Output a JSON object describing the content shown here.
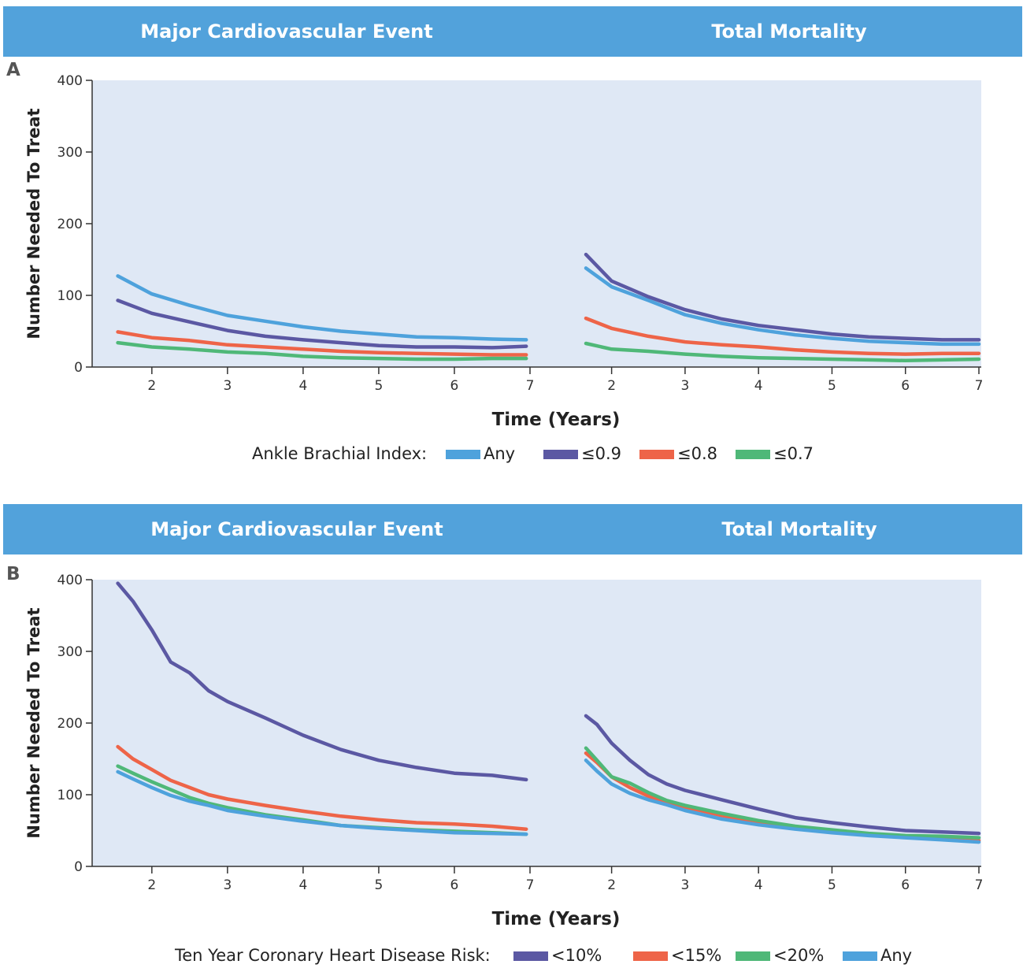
{
  "panels": [
    {
      "letter": "A",
      "col_titles": [
        "Major Cardiovascular Event",
        "Total Mortality"
      ],
      "legend_title": "Ankle Brachial Index:",
      "legend": [
        {
          "label": "Any",
          "color": "#4ea2dc"
        },
        {
          "label": "≤0.9",
          "color": "#5b58a3"
        },
        {
          "label": "≤0.8",
          "color": "#ee6448"
        },
        {
          "label": "≤0.7",
          "color": "#4fb878"
        }
      ]
    },
    {
      "letter": "B",
      "col_titles": [
        "Major Cardiovascular Event",
        "Total Mortality"
      ],
      "legend_title": "Ten Year Coronary Heart Disease Risk:",
      "legend": [
        {
          "label": "<10%",
          "color": "#5b58a3"
        },
        {
          "label": "<15%",
          "color": "#ee6448"
        },
        {
          "label": "<20%",
          "color": "#4fb878"
        },
        {
          "label": "Any",
          "color": "#4ea2dc"
        }
      ]
    }
  ],
  "chart_data": [
    {
      "type": "line",
      "panel": "A",
      "title": "Major Cardiovascular Event",
      "xlabel": "Time (Years)",
      "ylabel": "Number Needed To Treat",
      "xlim": [
        1.2,
        7
      ],
      "ylim": [
        0,
        400
      ],
      "xticks": [
        2,
        3,
        4,
        5,
        6,
        7
      ],
      "yticks": [
        0,
        100,
        200,
        300,
        400
      ],
      "x": [
        1.55,
        2,
        2.5,
        3,
        3.5,
        4,
        4.5,
        5,
        5.5,
        6,
        6.5,
        6.95
      ],
      "series": [
        {
          "name": "Any",
          "color": "#4ea2dc",
          "values": [
            127,
            102,
            86,
            72,
            64,
            56,
            50,
            46,
            42,
            41,
            39,
            38
          ]
        },
        {
          "name": "≤0.9",
          "color": "#5b58a3",
          "values": [
            93,
            75,
            63,
            51,
            43,
            38,
            34,
            30,
            28,
            28,
            27,
            29
          ]
        },
        {
          "name": "≤0.8",
          "color": "#ee6448",
          "values": [
            49,
            41,
            37,
            31,
            28,
            25,
            22,
            20,
            19,
            18,
            17,
            17
          ]
        },
        {
          "name": "≤0.7",
          "color": "#4fb878",
          "values": [
            34,
            28,
            25,
            21,
            19,
            15,
            13,
            12,
            11,
            11,
            12,
            12
          ]
        }
      ]
    },
    {
      "type": "line",
      "panel": "A",
      "title": "Total Mortality",
      "xlabel": "Time (Years)",
      "ylabel": "Number Needed To Treat",
      "xlim": [
        1.2,
        7
      ],
      "ylim": [
        0,
        400
      ],
      "xticks": [
        2,
        3,
        4,
        5,
        6,
        7
      ],
      "yticks": [
        0,
        100,
        200,
        300,
        400
      ],
      "x": [
        1.65,
        2,
        2.5,
        3,
        3.5,
        4,
        4.5,
        5,
        5.5,
        6,
        6.5,
        7
      ],
      "series": [
        {
          "name": "Any",
          "color": "#4ea2dc",
          "values": [
            138,
            112,
            93,
            73,
            61,
            52,
            45,
            40,
            36,
            34,
            32,
            32
          ]
        },
        {
          "name": "≤0.9",
          "color": "#5b58a3",
          "values": [
            157,
            120,
            98,
            80,
            67,
            58,
            52,
            46,
            42,
            40,
            38,
            38
          ]
        },
        {
          "name": "≤0.8",
          "color": "#ee6448",
          "values": [
            68,
            54,
            43,
            35,
            31,
            28,
            24,
            21,
            19,
            18,
            19,
            19
          ]
        },
        {
          "name": "≤0.7",
          "color": "#4fb878",
          "values": [
            33,
            25,
            22,
            18,
            15,
            13,
            12,
            11,
            10,
            9,
            10,
            11
          ]
        }
      ]
    },
    {
      "type": "line",
      "panel": "B",
      "title": "Major Cardiovascular Event",
      "xlabel": "Time (Years)",
      "ylabel": "Number Needed To Treat",
      "xlim": [
        1.2,
        7
      ],
      "ylim": [
        0,
        400
      ],
      "xticks": [
        2,
        3,
        4,
        5,
        6,
        7
      ],
      "yticks": [
        0,
        100,
        200,
        300,
        400
      ],
      "x": [
        1.55,
        1.75,
        2,
        2.25,
        2.5,
        2.75,
        3,
        3.5,
        4,
        4.5,
        5,
        5.5,
        6,
        6.5,
        6.95
      ],
      "series": [
        {
          "name": "<10%",
          "color": "#5b58a3",
          "values": [
            395,
            370,
            330,
            285,
            270,
            245,
            230,
            207,
            183,
            163,
            148,
            138,
            130,
            127,
            121
          ]
        },
        {
          "name": "<15%",
          "color": "#ee6448",
          "values": [
            167,
            150,
            135,
            120,
            110,
            100,
            94,
            85,
            77,
            70,
            65,
            61,
            59,
            56,
            52
          ]
        },
        {
          "name": "<20%",
          "color": "#4fb878",
          "values": [
            140,
            130,
            118,
            107,
            96,
            88,
            82,
            72,
            65,
            57,
            54,
            51,
            49,
            47,
            45
          ]
        },
        {
          "name": "Any",
          "color": "#4ea2dc",
          "values": [
            132,
            122,
            110,
            99,
            91,
            85,
            78,
            70,
            63,
            57,
            53,
            50,
            47,
            46,
            45
          ]
        }
      ]
    },
    {
      "type": "line",
      "panel": "B",
      "title": "Total Mortality",
      "xlabel": "Time (Years)",
      "ylabel": "Number Needed To Treat",
      "xlim": [
        1.2,
        7
      ],
      "ylim": [
        0,
        400
      ],
      "xticks": [
        2,
        3,
        4,
        5,
        6,
        7
      ],
      "yticks": [
        0,
        100,
        200,
        300,
        400
      ],
      "x": [
        1.65,
        1.8,
        2,
        2.25,
        2.5,
        2.75,
        3,
        3.5,
        4,
        4.5,
        5,
        5.5,
        6,
        6.5,
        7
      ],
      "series": [
        {
          "name": "<10%",
          "color": "#5b58a3",
          "values": [
            210,
            198,
            172,
            148,
            128,
            115,
            106,
            93,
            80,
            68,
            61,
            55,
            50,
            48,
            46
          ]
        },
        {
          "name": "<15%",
          "color": "#ee6448",
          "values": [
            158,
            145,
            125,
            110,
            98,
            90,
            83,
            71,
            62,
            55,
            49,
            44,
            41,
            38,
            36
          ]
        },
        {
          "name": "<20%",
          "color": "#4fb878",
          "values": [
            165,
            148,
            125,
            116,
            103,
            92,
            85,
            74,
            64,
            56,
            51,
            46,
            43,
            42,
            40
          ]
        },
        {
          "name": "Any",
          "color": "#4ea2dc",
          "values": [
            148,
            133,
            115,
            102,
            93,
            86,
            78,
            66,
            58,
            52,
            47,
            43,
            40,
            37,
            34
          ]
        }
      ]
    }
  ]
}
